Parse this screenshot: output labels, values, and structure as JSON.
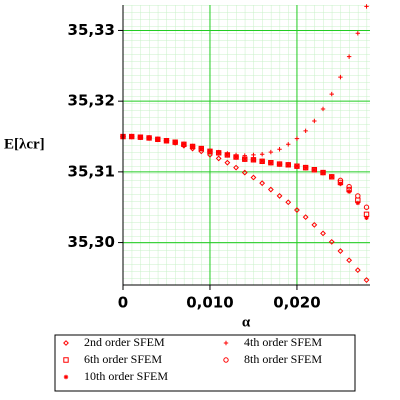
{
  "chart_data": {
    "type": "scatter",
    "x_label": "α",
    "y_label": "E[λcr]",
    "x": [
      0,
      0.001,
      0.002,
      0.003,
      0.004,
      0.005,
      0.006,
      0.007,
      0.008,
      0.009,
      0.01,
      0.011,
      0.012,
      0.013,
      0.014,
      0.015,
      0.016,
      0.017,
      0.018,
      0.019,
      0.02,
      0.021,
      0.022,
      0.023,
      0.024,
      0.025,
      0.026,
      0.027,
      0.028
    ],
    "series": [
      {
        "name": "2nd order SFEM",
        "color": "#ff0000",
        "marker": "diamond",
        "values": [
          35.315,
          35.315,
          35.3149,
          35.3148,
          35.3146,
          35.3144,
          35.3141,
          35.3137,
          35.3133,
          35.3129,
          35.3124,
          35.3119,
          35.3113,
          35.3106,
          35.3099,
          35.3092,
          35.3084,
          35.3075,
          35.3066,
          35.3057,
          35.3046,
          35.3036,
          35.3025,
          35.3013,
          35.3001,
          35.2988,
          35.2975,
          35.2961,
          35.2947
        ]
      },
      {
        "name": "4th order SFEM",
        "color": "#ff0000",
        "marker": "plus",
        "values": [
          35.315,
          35.315,
          35.3149,
          35.3148,
          35.3146,
          35.3144,
          35.3142,
          35.3139,
          35.3136,
          35.3133,
          35.313,
          35.3128,
          35.3126,
          35.3124,
          35.3123,
          35.3124,
          35.3125,
          35.3128,
          35.3132,
          35.3139,
          35.3147,
          35.3158,
          35.3172,
          35.3189,
          35.321,
          35.3234,
          35.3263,
          35.3296,
          35.3334
        ]
      },
      {
        "name": "6th order SFEM",
        "color": "#ff0000",
        "marker": "square",
        "values": [
          35.315,
          35.315,
          35.3149,
          35.3148,
          35.3146,
          35.3144,
          35.3142,
          35.3139,
          35.3136,
          35.3133,
          35.3129,
          35.3127,
          35.3124,
          35.3121,
          35.3118,
          35.3117,
          35.3115,
          35.3113,
          35.3111,
          35.311,
          35.3108,
          35.3106,
          35.3103,
          35.3099,
          35.3093,
          35.3085,
          35.3075,
          35.306,
          35.304
        ]
      },
      {
        "name": "8th order SFEM",
        "color": "#ff0000",
        "marker": "circle",
        "values": [
          35.315,
          35.315,
          35.3149,
          35.3148,
          35.3146,
          35.3144,
          35.3142,
          35.3139,
          35.3136,
          35.3133,
          35.3129,
          35.3127,
          35.3124,
          35.3121,
          35.3118,
          35.3117,
          35.3115,
          35.3113,
          35.3111,
          35.311,
          35.3108,
          35.3106,
          35.3103,
          35.3099,
          35.3093,
          35.3088,
          35.3079,
          35.3066,
          35.305
        ]
      },
      {
        "name": "10th order SFEM",
        "color": "#ff0000",
        "marker": "star",
        "values": [
          35.315,
          35.315,
          35.3149,
          35.3148,
          35.3146,
          35.3144,
          35.3142,
          35.3139,
          35.3136,
          35.3133,
          35.3129,
          35.3127,
          35.3124,
          35.3121,
          35.3118,
          35.3117,
          35.3115,
          35.3113,
          35.3111,
          35.311,
          35.3108,
          35.3106,
          35.3103,
          35.3099,
          35.3093,
          35.3083,
          35.3072,
          35.3056,
          35.3035
        ]
      }
    ],
    "xlim": [
      0,
      0.0284
    ],
    "ylim": [
      35.294,
      35.3336
    ],
    "xticks": [
      0,
      {
        "value": 0.01,
        "label": "0,010"
      },
      {
        "value": 0.02,
        "label": "0,020"
      }
    ],
    "yticks": [
      {
        "value": 35.3,
        "label": "35,30"
      },
      {
        "value": 35.31,
        "label": "35,31"
      },
      {
        "value": 35.32,
        "label": "35,32"
      },
      {
        "value": 35.33,
        "label": "35,33"
      }
    ],
    "grid": true
  }
}
